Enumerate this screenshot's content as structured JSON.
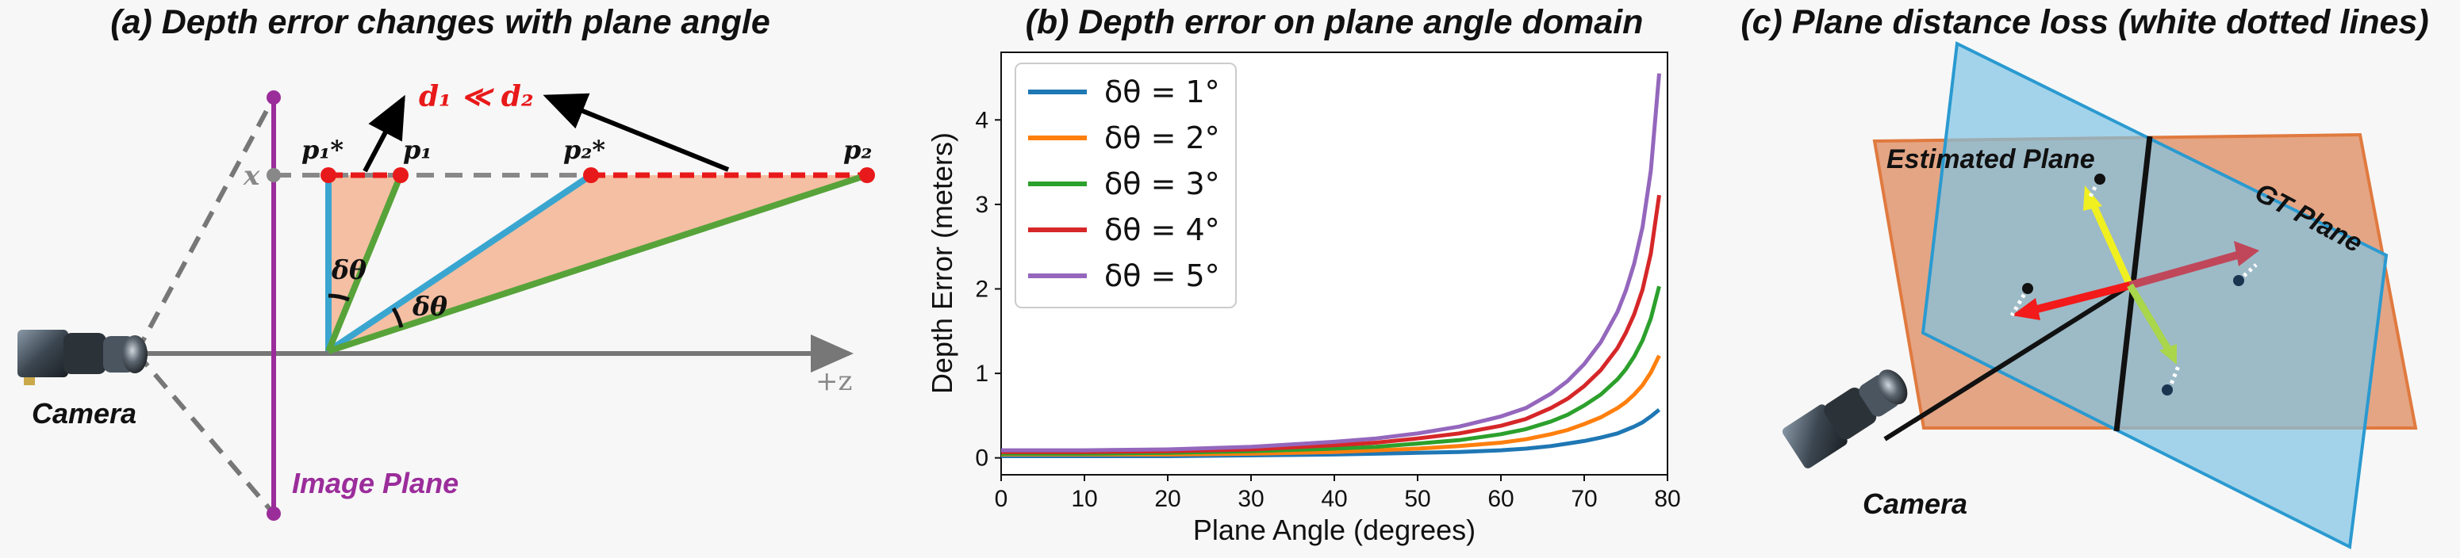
{
  "panel_a": {
    "title": "(a) Depth error changes with plane angle",
    "relation": "d₁ ≪ d₂",
    "p1_star": "p₁*",
    "p1": "p₁",
    "p2_star": "p₂*",
    "p2": "p₂",
    "x_label": "x",
    "z_label": "+z",
    "angle1": "δθ",
    "angle2": "δθ",
    "camera_label": "Camera",
    "image_plane_label": "Image Plane",
    "colors": {
      "error": "#e8191a",
      "image_plane": "#9b2d9b",
      "ray": "#3aa6d0",
      "tilted": "#57a33a",
      "fill": "#f4bfa3"
    }
  },
  "panel_c": {
    "title": "(c) Plane distance loss (white dotted lines)",
    "estimated_label": "Estimated Plane",
    "gt_label": "GT Plane",
    "camera_label": "Camera",
    "colors": {
      "estimated": "#e3a07d",
      "gt": "#7fc3e4"
    }
  },
  "chart_data": {
    "type": "line",
    "title": "(b) Depth error on plane angle domain",
    "xlabel": "Plane Angle (degrees)",
    "ylabel": "Depth Error (meters)",
    "xlim": [
      0,
      80
    ],
    "ylim": [
      -0.2,
      4.8
    ],
    "xticks": [
      0,
      10,
      20,
      30,
      40,
      50,
      60,
      70,
      80
    ],
    "yticks": [
      0,
      1,
      2,
      3,
      4
    ],
    "grid": false,
    "legend_position": "top-left",
    "x": [
      0,
      10,
      20,
      30,
      40,
      45,
      50,
      55,
      60,
      63,
      66,
      68,
      70,
      72,
      74,
      75,
      76,
      77,
      78,
      79
    ],
    "series": [
      {
        "name": "δθ = 1°",
        "color": "#1f77b4",
        "values": [
          0.02,
          0.02,
          0.02,
          0.03,
          0.04,
          0.05,
          0.06,
          0.07,
          0.09,
          0.11,
          0.14,
          0.17,
          0.2,
          0.24,
          0.29,
          0.33,
          0.37,
          0.42,
          0.49,
          0.57
        ]
      },
      {
        "name": "δθ = 2°",
        "color": "#ff7f0e",
        "values": [
          0.04,
          0.04,
          0.04,
          0.05,
          0.07,
          0.09,
          0.11,
          0.14,
          0.18,
          0.22,
          0.28,
          0.33,
          0.4,
          0.48,
          0.59,
          0.66,
          0.75,
          0.86,
          1.01,
          1.21
        ]
      },
      {
        "name": "δθ = 3°",
        "color": "#2ca02c",
        "values": [
          0.05,
          0.05,
          0.06,
          0.08,
          0.11,
          0.13,
          0.17,
          0.21,
          0.28,
          0.34,
          0.43,
          0.51,
          0.62,
          0.75,
          0.93,
          1.05,
          1.2,
          1.39,
          1.65,
          2.03
        ]
      },
      {
        "name": "δθ = 4°",
        "color": "#d62728",
        "values": [
          0.07,
          0.07,
          0.08,
          0.1,
          0.15,
          0.18,
          0.23,
          0.29,
          0.38,
          0.46,
          0.59,
          0.7,
          0.85,
          1.04,
          1.3,
          1.48,
          1.7,
          1.99,
          2.42,
          3.11
        ]
      },
      {
        "name": "δθ = 5°",
        "color": "#9467bd",
        "values": [
          0.09,
          0.09,
          0.1,
          0.13,
          0.19,
          0.23,
          0.29,
          0.37,
          0.49,
          0.59,
          0.76,
          0.91,
          1.11,
          1.37,
          1.73,
          1.98,
          2.3,
          2.73,
          3.4,
          4.55
        ]
      }
    ]
  }
}
